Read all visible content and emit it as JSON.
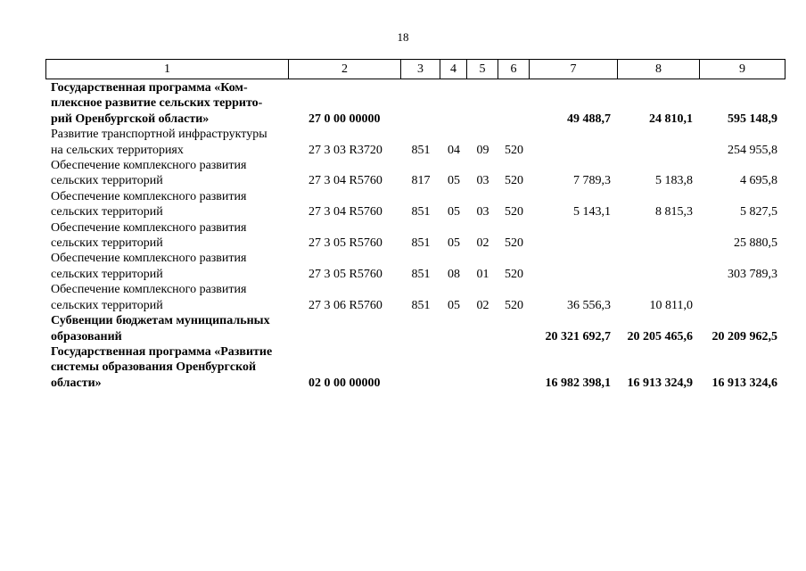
{
  "page_number": "18",
  "table": {
    "header_cells": [
      "1",
      "2",
      "3",
      "4",
      "5",
      "6",
      "7",
      "8",
      "9"
    ],
    "rows": [
      {
        "bold": true,
        "name_lines": [
          "Государственная программа «Ком-",
          "плексное развитие сельских террито-",
          "рий Оренбургской области»"
        ],
        "c2": "27 0 00 00000",
        "c3": "",
        "c4": "",
        "c5": "",
        "c6": "",
        "c7": "49 488,7",
        "c8": "24 810,1",
        "c9": "595 148,9"
      },
      {
        "bold": false,
        "name_lines": [
          "Развитие транспортной инфраструктуры",
          "на сельских территориях"
        ],
        "c2": "27 3 03 R3720",
        "c3": "851",
        "c4": "04",
        "c5": "09",
        "c6": "520",
        "c7": "",
        "c8": "",
        "c9": "254 955,8"
      },
      {
        "bold": false,
        "name_lines": [
          "Обеспечение комплексного развития",
          "сельских территорий"
        ],
        "c2": "27 3 04 R5760",
        "c3": "817",
        "c4": "05",
        "c5": "03",
        "c6": "520",
        "c7": "7 789,3",
        "c8": "5 183,8",
        "c9": "4 695,8"
      },
      {
        "bold": false,
        "name_lines": [
          "Обеспечение комплексного развития",
          "сельских территорий"
        ],
        "c2": "27 3 04 R5760",
        "c3": "851",
        "c4": "05",
        "c5": "03",
        "c6": "520",
        "c7": "5 143,1",
        "c8": "8 815,3",
        "c9": "5 827,5"
      },
      {
        "bold": false,
        "name_lines": [
          "Обеспечение комплексного развития",
          "сельских территорий"
        ],
        "c2": "27 3 05 R5760",
        "c3": "851",
        "c4": "05",
        "c5": "02",
        "c6": "520",
        "c7": "",
        "c8": "",
        "c9": "25 880,5"
      },
      {
        "bold": false,
        "name_lines": [
          "Обеспечение комплексного развития",
          "сельских территорий"
        ],
        "c2": "27 3 05 R5760",
        "c3": "851",
        "c4": "08",
        "c5": "01",
        "c6": "520",
        "c7": "",
        "c8": "",
        "c9": "303 789,3"
      },
      {
        "bold": false,
        "name_lines": [
          "Обеспечение комплексного развития",
          "сельских территорий"
        ],
        "c2": "27 3 06 R5760",
        "c3": "851",
        "c4": "05",
        "c5": "02",
        "c6": "520",
        "c7": "36 556,3",
        "c8": "10 811,0",
        "c9": ""
      },
      {
        "bold": true,
        "name_lines": [
          "Субвенции бюджетам муниципальных",
          "образований"
        ],
        "c2": "",
        "c3": "",
        "c4": "",
        "c5": "",
        "c6": "",
        "c7": "20 321 692,7",
        "c8": "20 205 465,6",
        "c9": "20 209 962,5"
      },
      {
        "bold": true,
        "name_lines": [
          "Государственная программа «Развитие",
          "системы образования Оренбургской",
          "области»"
        ],
        "c2": "02 0 00 00000",
        "c3": "",
        "c4": "",
        "c5": "",
        "c6": "",
        "c7": "16 982 398,1",
        "c8": "16 913 324,9",
        "c9": "16 913 324,6"
      }
    ]
  }
}
